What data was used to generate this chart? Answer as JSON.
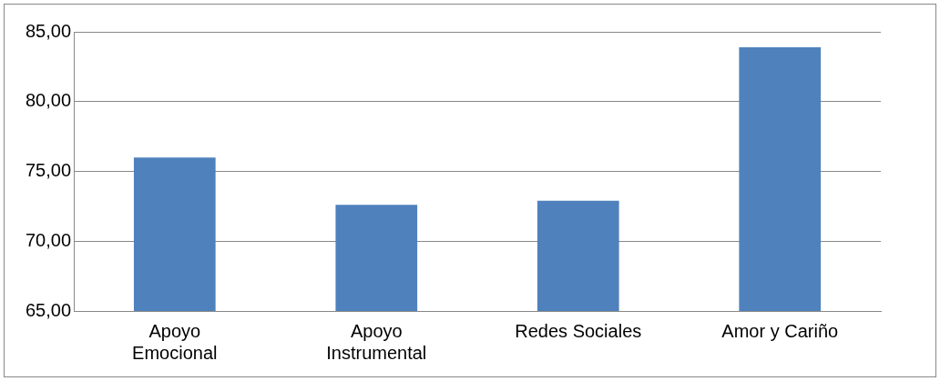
{
  "chart_data": {
    "type": "bar",
    "categories": [
      "Apoyo Emocional",
      "Apoyo Instrumental",
      "Redes Sociales",
      "Amor y Cariño"
    ],
    "values": [
      76.0,
      72.6,
      72.9,
      83.9
    ],
    "color": "#4f81bd",
    "ylim": [
      65,
      85
    ],
    "yticks": [
      {
        "value": 65,
        "label": "65,00"
      },
      {
        "value": 70,
        "label": "70,00"
      },
      {
        "value": 75,
        "label": "75,00"
      },
      {
        "value": 80,
        "label": "80,00"
      },
      {
        "value": 85,
        "label": "85,00"
      }
    ],
    "grid": "y",
    "legend": false
  }
}
